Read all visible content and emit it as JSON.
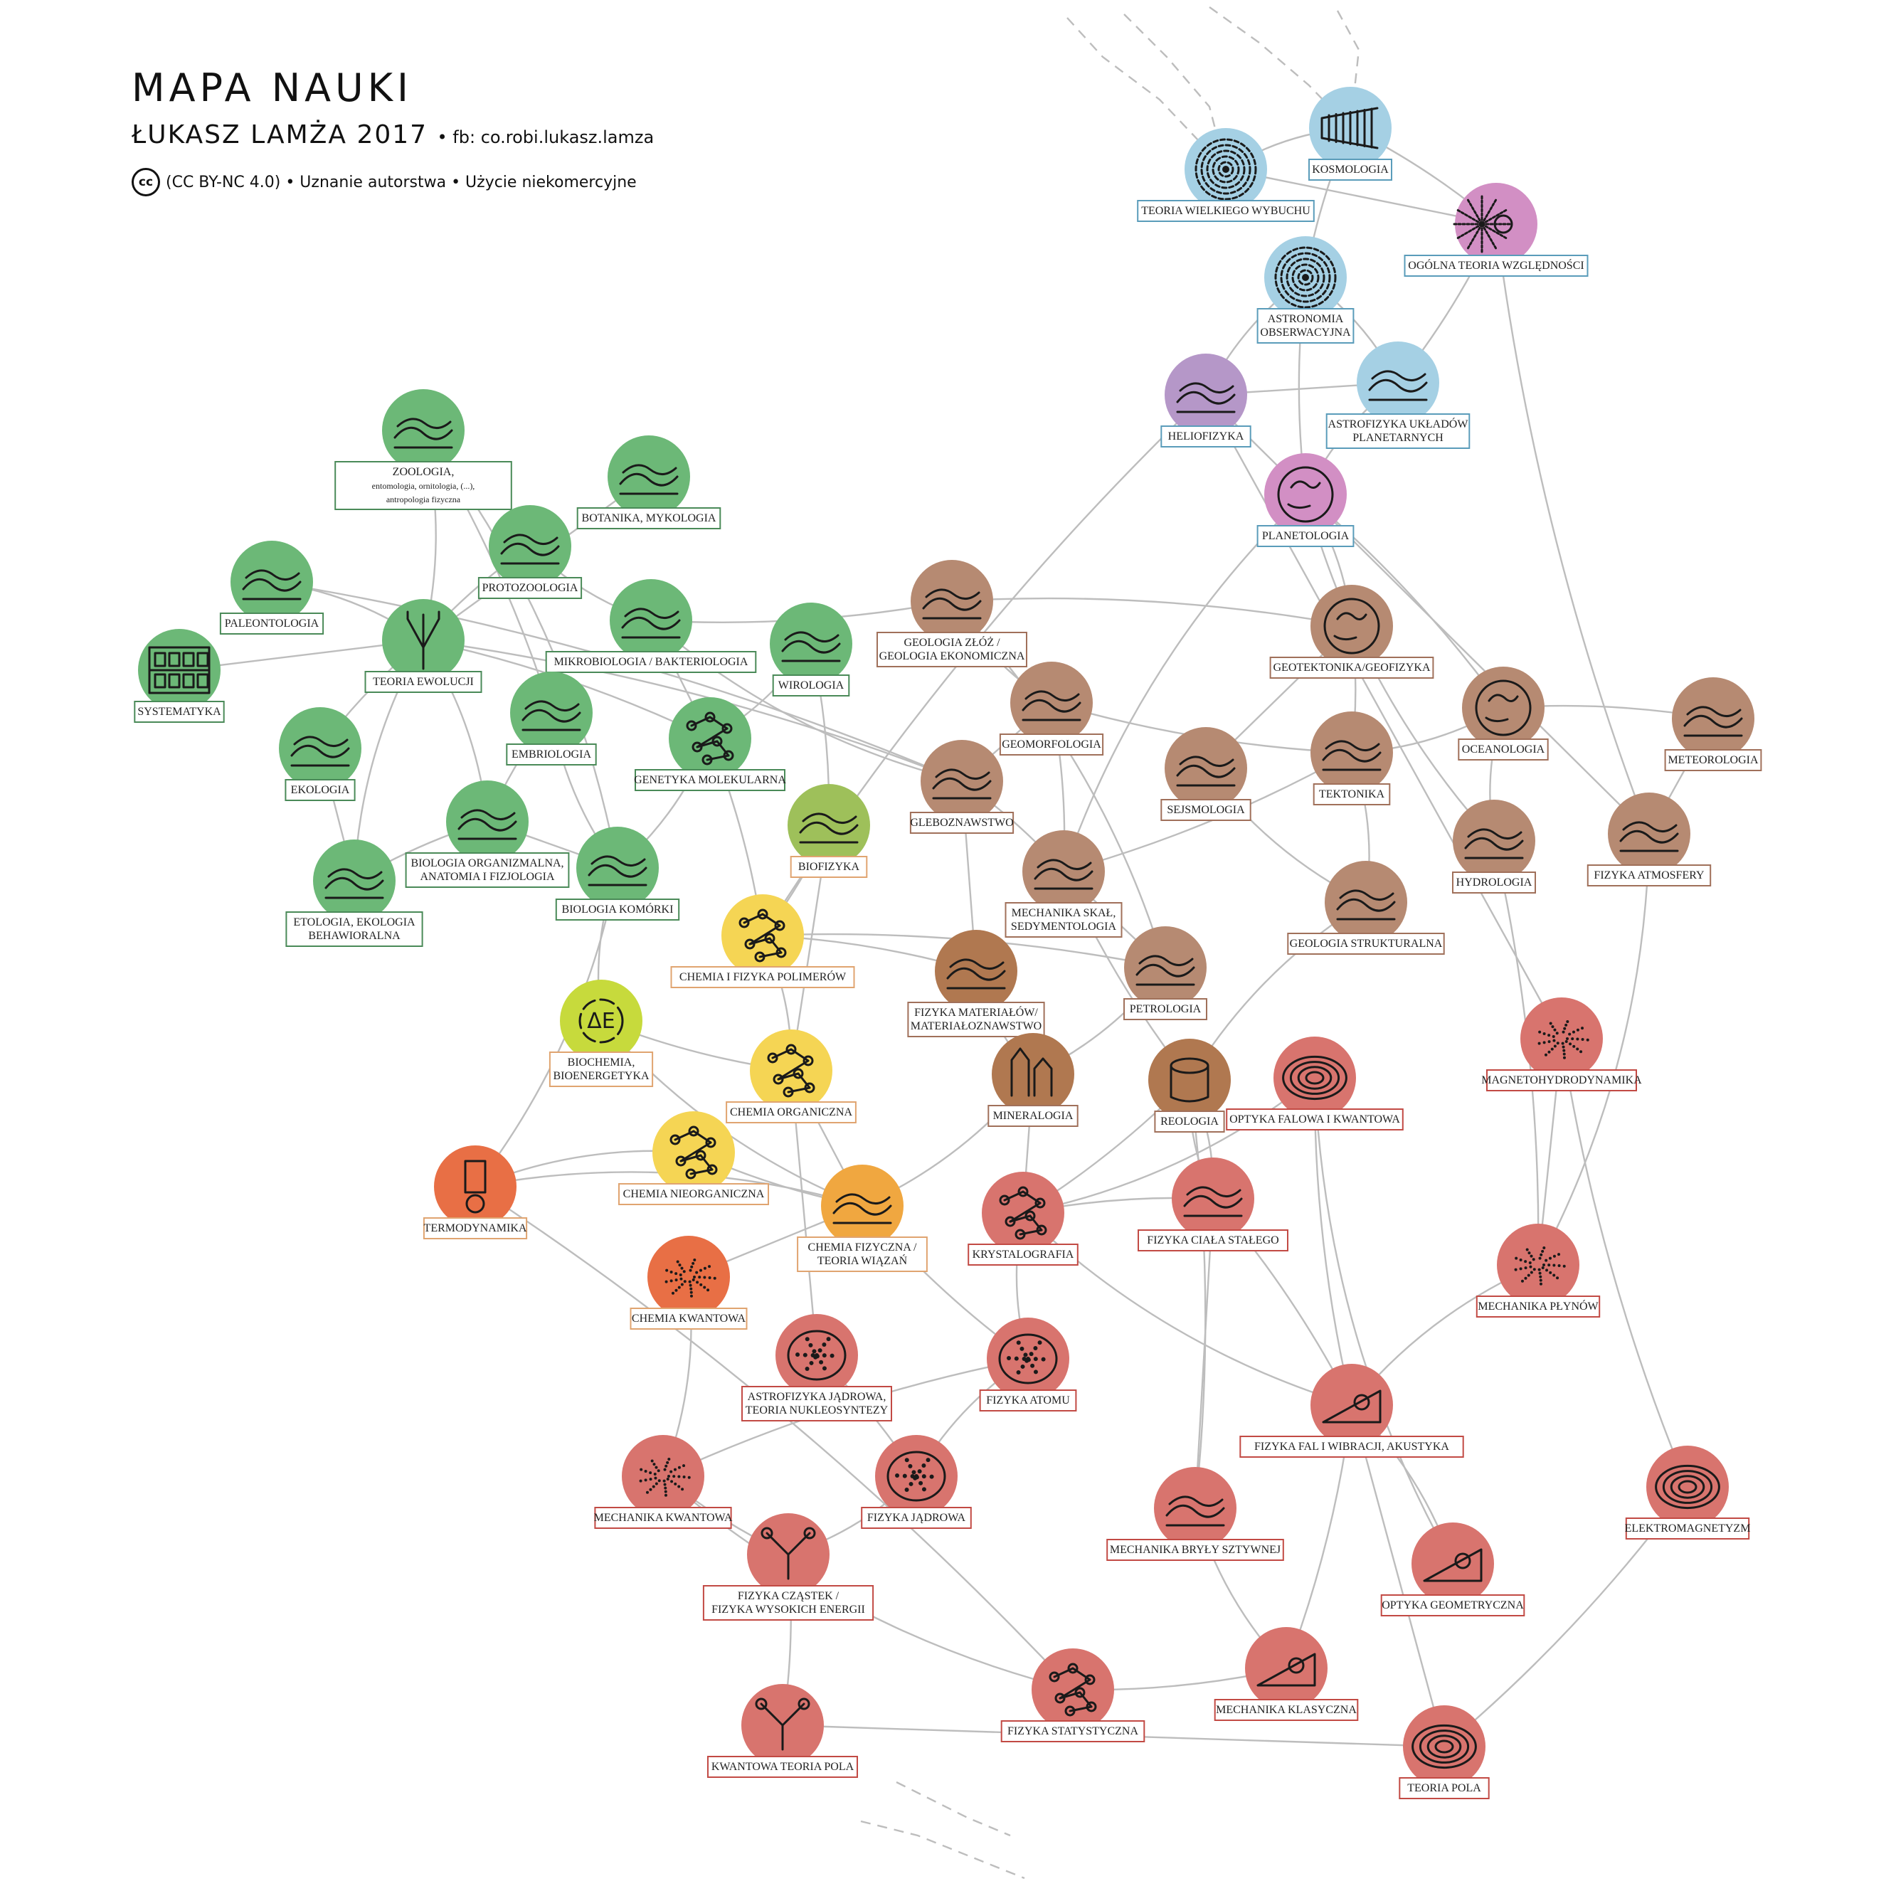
{
  "header": {
    "title": "MAPA NAUKI",
    "author": "ŁUKASZ LAMŻA 2017",
    "fb": "• fb: co.robi.lukasz.lamza",
    "cc": "cc",
    "license": "(CC BY-NC 4.0) • Uznanie autorstwa • Użycie niekomercyjne"
  },
  "colors": {
    "biology": "#6cb877",
    "biology_border": "#4a8a58",
    "cosmos": "#a5d0e4",
    "cosmos_border": "#5a9cba",
    "purple": "#b597c8",
    "pink": "#d28fc4",
    "earth": "#b68a72",
    "earth_border": "#a0705a",
    "physics": "#d8746e",
    "physics_border": "#c24a44",
    "chemistry_yellow": "#f5d554",
    "chemistry_border": "#e0a470",
    "orange": "#e88a3e",
    "orange_red": "#e86f45",
    "lime": "#c7da3c",
    "olive": "#9ec05a",
    "amber": "#f0a740",
    "brown_mid": "#b07850",
    "edge": "#bdbdbd"
  },
  "nodes": [
    {
      "id": "teoria-wielkiego-wybuchu",
      "label": "TEORIA WIELKIEGO WYBUCHU",
      "color": "cosmos",
      "icon": "spiral-icon"
    },
    {
      "id": "kosmologia",
      "label": "KOSMOLOGIA",
      "color": "cosmos",
      "icon": "cone-icon"
    },
    {
      "id": "ogolna-teoria-wzglednosci",
      "label": "OGÓLNA TEORIA WZGLĘDNOŚCI",
      "color": "pink",
      "icon": "lensing-icon"
    },
    {
      "id": "astronomia-obserwacyjna",
      "label": "ASTRONOMIA OBSERWACYJNA",
      "label2": "OBSERWACYJNA",
      "label1": "ASTRONOMIA",
      "color": "cosmos",
      "icon": "galaxy-icon"
    },
    {
      "id": "heliofizyka",
      "label": "HELIOFIZYKA",
      "color": "purple",
      "icon": "solar-flare-icon"
    },
    {
      "id": "astrofizyka-ukladow",
      "label1": "ASTROFIZYKA UKŁADÓW",
      "label2": "PLANETARNYCH",
      "color": "cosmos",
      "icon": "disk-icon"
    },
    {
      "id": "planetologia",
      "label": "PLANETOLOGIA",
      "color": "pink",
      "icon": "planet-icon"
    },
    {
      "id": "zoologia",
      "label1": "ZOOLOGIA,",
      "label2": "entomologia, ornitologia, (...),",
      "label3": "antropologia fizyczna",
      "color": "biology",
      "icon": "beetle-icon"
    },
    {
      "id": "botanika",
      "label": "BOTANIKA, MYKOLOGIA",
      "color": "biology",
      "icon": "fern-icon"
    },
    {
      "id": "protozoologia",
      "label": "PROTOZOOLOGIA",
      "color": "biology",
      "icon": "protozoa-icon"
    },
    {
      "id": "paleontologia",
      "label": "PALEONTOLOGIA",
      "color": "biology",
      "icon": "fossil-icon"
    },
    {
      "id": "mikrobiologia",
      "label": "MIKROBIOLOGIA / BAKTERIOLOGIA",
      "color": "biology",
      "icon": "bacteria-icon"
    },
    {
      "id": "wirologia",
      "label": "WIROLOGIA",
      "color": "biology",
      "icon": "virus-icon"
    },
    {
      "id": "systematyka",
      "label": "SYSTEMATYKA",
      "color": "biology",
      "icon": "drawers-icon"
    },
    {
      "id": "teoria-ewolucji",
      "label": "TEORIA EWOLUCJI",
      "color": "biology",
      "icon": "tree-icon"
    },
    {
      "id": "embriologia",
      "label": "EMBRIOLOGIA",
      "color": "biology",
      "icon": "embryo-icon"
    },
    {
      "id": "genetyka",
      "label": "GENETYKA MOLEKULARNA",
      "color": "biology",
      "icon": "dna-icon"
    },
    {
      "id": "ekologia",
      "label": "EKOLOGIA",
      "color": "biology",
      "icon": "hare-icon"
    },
    {
      "id": "biologia-organizmalna",
      "label1": "BIOLOGIA ORGANIZMALNA,",
      "label2": "ANATOMIA I FIZJOLOGIA",
      "color": "biology",
      "icon": "organs-icon"
    },
    {
      "id": "etologia",
      "label1": "ETOLOGIA, EKOLOGIA",
      "label2": "BEHAWIORALNA",
      "color": "biology",
      "icon": "bird-icon"
    },
    {
      "id": "biologia-komorki",
      "label": "BIOLOGIA KOMÓRKI",
      "color": "biology",
      "icon": "cell-icon"
    },
    {
      "id": "biofizyka",
      "label": "BIOFIZYKA",
      "color": "olive",
      "icon": "membrane-icon"
    },
    {
      "id": "geologia-zloz",
      "label1": "GEOLOGIA ZŁÓŻ /",
      "label2": "GEOLOGIA EKONOMICZNA",
      "color": "earth",
      "icon": "strata-icon"
    },
    {
      "id": "geotektonika",
      "label": "GEOTEKTONIKA/GEOFIZYKA",
      "color": "earth",
      "icon": "mantle-icon"
    },
    {
      "id": "oceanologia",
      "label": "OCEANOLOGIA",
      "color": "earth",
      "icon": "globe-icon"
    },
    {
      "id": "geomorfologia",
      "label": "GEOMORFOLOGIA",
      "color": "earth",
      "icon": "landscape-icon"
    },
    {
      "id": "sejsmologia",
      "label": "SEJSMOLOGIA",
      "color": "earth",
      "icon": "seismic-icon"
    },
    {
      "id": "tektonika",
      "label": "TEKTONIKA",
      "color": "earth",
      "icon": "fault-icon"
    },
    {
      "id": "meteorologia",
      "label": "METEOROLOGIA",
      "color": "earth",
      "icon": "weather-icon"
    },
    {
      "id": "gleboznawstwo",
      "label": "GLEBOZNAWSTWO",
      "color": "earth",
      "icon": "soil-icon"
    },
    {
      "id": "hydrologia",
      "label": "HYDROLOGIA",
      "color": "earth",
      "icon": "river-icon"
    },
    {
      "id": "fizyka-atmosfery",
      "label": "FIZYKA ATMOSFERY",
      "color": "earth",
      "icon": "clouds-icon"
    },
    {
      "id": "mechanika-skal",
      "label1": "MECHANIKA SKAŁ,",
      "label2": "SEDYMENTOLOGIA",
      "color": "earth",
      "icon": "rock-layers-icon"
    },
    {
      "id": "geologia-strukturalna",
      "label": "GEOLOGIA STRUKTURALNA",
      "color": "earth",
      "icon": "fold-icon"
    },
    {
      "id": "chemia-polimerow",
      "label": "CHEMIA I FIZYKA POLIMERÓW",
      "color": "chemistry_yellow",
      "icon": "polymer-icon"
    },
    {
      "id": "fizyka-materialow",
      "label1": "FIZYKA MATERIAŁÓW/",
      "label2": "MATERIAŁOZNAWSTWO",
      "color": "brown_mid",
      "icon": "plate-icon"
    },
    {
      "id": "petrologia",
      "label": "PETROLOGIA",
      "color": "earth",
      "icon": "rock-sample-icon"
    },
    {
      "id": "biochemia",
      "label1": "BIOCHEMIA,",
      "label2": "BIOENERGETYKA",
      "color": "lime",
      "icon": "energy-cycle-icon"
    },
    {
      "id": "chemia-organiczna",
      "label": "CHEMIA ORGANICZNA",
      "color": "chemistry_yellow",
      "icon": "molecule-icon"
    },
    {
      "id": "mineralogia",
      "label": "MINERALOGIA",
      "color": "brown_mid",
      "icon": "crystal-icon"
    },
    {
      "id": "reologia",
      "label": "REOLOGIA",
      "color": "brown_mid",
      "icon": "cylinder-icon"
    },
    {
      "id": "optyka-falowa",
      "label": "OPTYKA FALOWA I KWANTOWA",
      "color": "physics",
      "icon": "interference-icon"
    },
    {
      "id": "magnetohydrodynamika",
      "label": "MAGNETOHYDRODYNAMIKA",
      "color": "physics",
      "icon": "plasma-icon"
    },
    {
      "id": "chemia-nieorganiczna",
      "label": "CHEMIA NIEORGANICZNA",
      "color": "chemistry_yellow",
      "icon": "network-icon"
    },
    {
      "id": "termodynamika",
      "label": "TERMODYNAMIKA",
      "color": "orange_red",
      "icon": "thermometer-icon"
    },
    {
      "id": "chemia-fizyczna",
      "label1": "CHEMIA FIZYCZNA /",
      "label2": "TEORIA WIĄZAŃ",
      "color": "amber",
      "icon": "bond-icon"
    },
    {
      "id": "krystalografia",
      "label": "KRYSTALOGRAFIA",
      "color": "physics",
      "icon": "lattice-icon"
    },
    {
      "id": "fizyka-ciala-stalego",
      "label": "FIZYKA CIAŁA STAŁEGO",
      "color": "physics",
      "icon": "mesh-icon"
    },
    {
      "id": "mechanika-plynow",
      "label": "MECHANIKA PŁYNÓW",
      "color": "physics",
      "icon": "vortex-icon"
    },
    {
      "id": "chemia-kwantowa",
      "label": "CHEMIA KWANTOWA",
      "color": "orange_red",
      "icon": "orbital-icon"
    },
    {
      "id": "astrofizyka-jadrowa",
      "label1": "ASTROFIZYKA JĄDROWA,",
      "label2": "TEORIA NUKLEOSYNTEZY",
      "color": "physics",
      "icon": "nuclei-icon"
    },
    {
      "id": "fizyka-atomu",
      "label": "FIZYKA ATOMU",
      "color": "physics",
      "icon": "atom-icon"
    },
    {
      "id": "fizyka-fal",
      "label": "FIZYKA FAL I WIBRACJI, AKUSTYKA",
      "color": "physics",
      "icon": "paper-wave-icon"
    },
    {
      "id": "mechanika-kwantowa",
      "label": "MECHANIKA KWANTOWA",
      "color": "physics",
      "icon": "probability-cloud-icon"
    },
    {
      "id": "fizyka-jadrowa",
      "label": "FIZYKA JĄDROWA",
      "color": "physics",
      "icon": "nucleus-icon"
    },
    {
      "id": "mechanika-bryly",
      "label": "MECHANIKA BRYŁY SZTYWNEJ",
      "color": "physics",
      "icon": "rigid-body-icon"
    },
    {
      "id": "optyka-geometryczna",
      "label": "OPTYKA GEOMETRYCZNA",
      "color": "physics",
      "icon": "lens-icon"
    },
    {
      "id": "elektromagnetyzm",
      "label": "ELEKTROMAGNETYZM",
      "color": "physics",
      "icon": "field-lines-icon"
    },
    {
      "id": "fizyka-czastek",
      "label1": "FIZYKA CZĄSTEK /",
      "label2": "FIZYKA WYSOKICH ENERGII",
      "color": "physics",
      "icon": "tracks-icon"
    },
    {
      "id": "mechanika-klasyczna",
      "label": "MECHANIKA KLASYCZNA",
      "color": "physics",
      "icon": "incline-icon"
    },
    {
      "id": "fizyka-statystyczna",
      "label": "FIZYKA STATYSTYCZNA",
      "color": "physics",
      "icon": "particles-icon"
    },
    {
      "id": "kwantowa-teoria-pola",
      "label": "KWANTOWA TEORIA POLA",
      "color": "physics",
      "icon": "feynman-icon"
    },
    {
      "id": "teoria-pola",
      "label": "TEORIA POLA",
      "color": "physics",
      "icon": "gauss-icon"
    }
  ]
}
